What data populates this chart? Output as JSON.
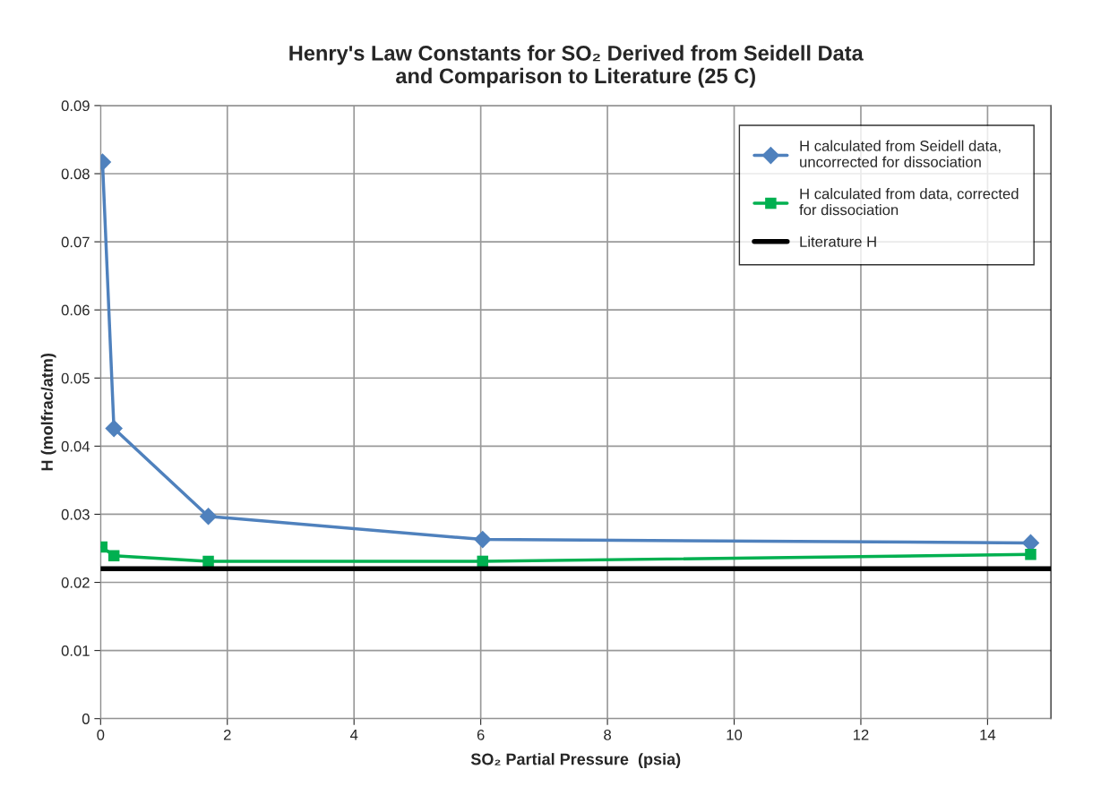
{
  "chart_data": {
    "type": "line",
    "title": "Henry's Law Constants for SO₂ Derived from Seidell Data\nand Comparison to Literature (25 C)",
    "xlabel": "SO₂ Partial Pressure  (psia)",
    "ylabel": "H (molfrac/atm)",
    "series": [
      {
        "name": "H calculated from Seidell data,\nuncorrected for dissociation",
        "color": "#4f81bd",
        "marker": "diamond",
        "x": [
          0.03,
          0.21,
          1.7,
          6.03,
          14.68
        ],
        "values": [
          0.0817,
          0.0426,
          0.0297,
          0.0263,
          0.0258
        ]
      },
      {
        "name": "H calculated from data, corrected\nfor dissociation",
        "color": "#00b050",
        "marker": "square",
        "x": [
          0.02,
          0.21,
          1.7,
          6.03,
          14.68
        ],
        "values": [
          0.0252,
          0.0239,
          0.0231,
          0.0231,
          0.0241
        ]
      },
      {
        "name": "Literature H",
        "color": "#000000",
        "marker": "none",
        "x": [
          0,
          15
        ],
        "values": [
          0.022,
          0.022
        ]
      }
    ],
    "xlim": [
      0,
      15
    ],
    "xticks": [
      0,
      2,
      4,
      6,
      8,
      10,
      12,
      14
    ],
    "ylim": [
      0,
      0.09
    ],
    "yticks": [
      0,
      0.01,
      0.02,
      0.03,
      0.04,
      0.05,
      0.06,
      0.07,
      0.08,
      0.09
    ],
    "grid": true,
    "legend": "top right"
  }
}
